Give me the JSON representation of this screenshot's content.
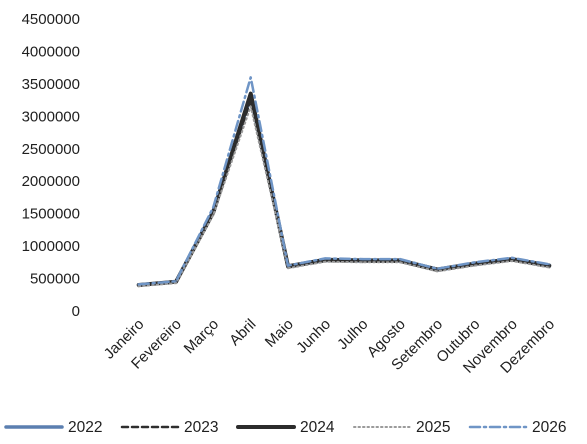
{
  "chart_data": {
    "type": "line",
    "categories": [
      "Janeiro",
      "Fevereiro",
      "Março",
      "Abril",
      "Maio",
      "Junho",
      "Julho",
      "Agosto",
      "Setembro",
      "Outubro",
      "Novembro",
      "Dezembro"
    ],
    "ylim": [
      0,
      4500000
    ],
    "yticks": [
      "0",
      "500000",
      "1000000",
      "1500000",
      "2000000",
      "2500000",
      "3000000",
      "3500000",
      "4000000",
      "4500000"
    ],
    "legend_position": "bottom",
    "grid": false,
    "series": [
      {
        "name": "2022",
        "color": "#5b7fb0",
        "style": "solid",
        "values": [
          400000,
          450000,
          1550000,
          3300000,
          680000,
          780000,
          770000,
          770000,
          630000,
          720000,
          790000,
          690000
        ]
      },
      {
        "name": "2023",
        "color": "#2e2e2e",
        "style": "dashed",
        "values": [
          390000,
          440000,
          1500000,
          3250000,
          670000,
          770000,
          760000,
          760000,
          620000,
          710000,
          780000,
          680000
        ]
      },
      {
        "name": "2024",
        "color": "#2c2c2c",
        "style": "thick",
        "values": [
          400000,
          450000,
          1520000,
          3350000,
          690000,
          790000,
          780000,
          780000,
          640000,
          730000,
          800000,
          700000
        ]
      },
      {
        "name": "2025",
        "color": "#9a9a9a",
        "style": "dotted",
        "values": [
          380000,
          430000,
          1480000,
          3150000,
          660000,
          760000,
          750000,
          750000,
          610000,
          700000,
          770000,
          670000
        ]
      },
      {
        "name": "2026",
        "color": "#6f95c6",
        "style": "dashdot",
        "values": [
          410000,
          460000,
          1600000,
          3600000,
          700000,
          810000,
          800000,
          800000,
          650000,
          750000,
          820000,
          720000
        ]
      }
    ]
  }
}
